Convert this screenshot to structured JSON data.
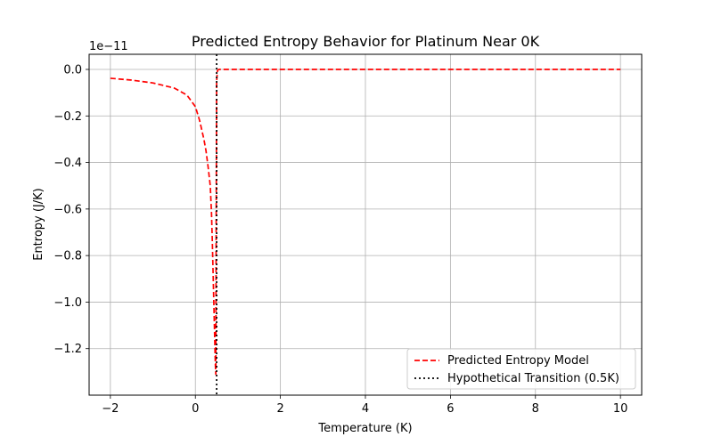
{
  "chart_data": {
    "type": "line",
    "title": "Predicted Entropy Behavior for Platinum Near 0K",
    "xlabel": "Temperature (K)",
    "ylabel": "Entropy (J/K)",
    "y_offset_label": "1e−11",
    "xlim": [
      -2.5,
      10.5
    ],
    "ylim": [
      -1.4,
      0.065
    ],
    "xticks": [
      -2,
      0,
      2,
      4,
      6,
      8,
      10
    ],
    "xtick_labels": [
      "−2",
      "0",
      "2",
      "4",
      "6",
      "8",
      "10"
    ],
    "yticks": [
      0.0,
      -0.2,
      -0.4,
      -0.6,
      -0.8,
      -1.0,
      -1.2
    ],
    "ytick_labels": [
      "0.0",
      "−0.2",
      "−0.4",
      "−0.6",
      "−0.8",
      "−1.0",
      "−1.2"
    ],
    "grid": true,
    "legend_position": "lower-right",
    "series": [
      {
        "name": "Predicted Entropy Model",
        "style": "dashed",
        "color": "#ff0000",
        "x": [
          -2.0,
          -1.5,
          -1.0,
          -0.5,
          -0.2,
          0.0,
          0.1,
          0.2,
          0.25,
          0.3,
          0.35,
          0.38,
          0.4,
          0.42,
          0.44,
          0.46,
          0.47,
          0.48,
          0.49,
          0.5,
          0.52,
          0.55,
          0.6,
          1.0,
          2.0,
          4.0,
          6.0,
          8.0,
          10.0
        ],
        "y": [
          -0.038,
          -0.046,
          -0.058,
          -0.08,
          -0.11,
          -0.16,
          -0.22,
          -0.3,
          -0.35,
          -0.42,
          -0.5,
          -0.62,
          -0.75,
          -0.9,
          -1.05,
          -1.2,
          -1.27,
          -1.31,
          -0.6,
          -0.05,
          -0.005,
          0.0,
          0.0,
          0.0,
          0.0,
          0.0,
          0.0,
          0.0,
          0.0
        ]
      },
      {
        "name": "Hypothetical Transition (0.5K)",
        "style": "dotted",
        "color": "#000000",
        "x": 0.5
      }
    ]
  }
}
